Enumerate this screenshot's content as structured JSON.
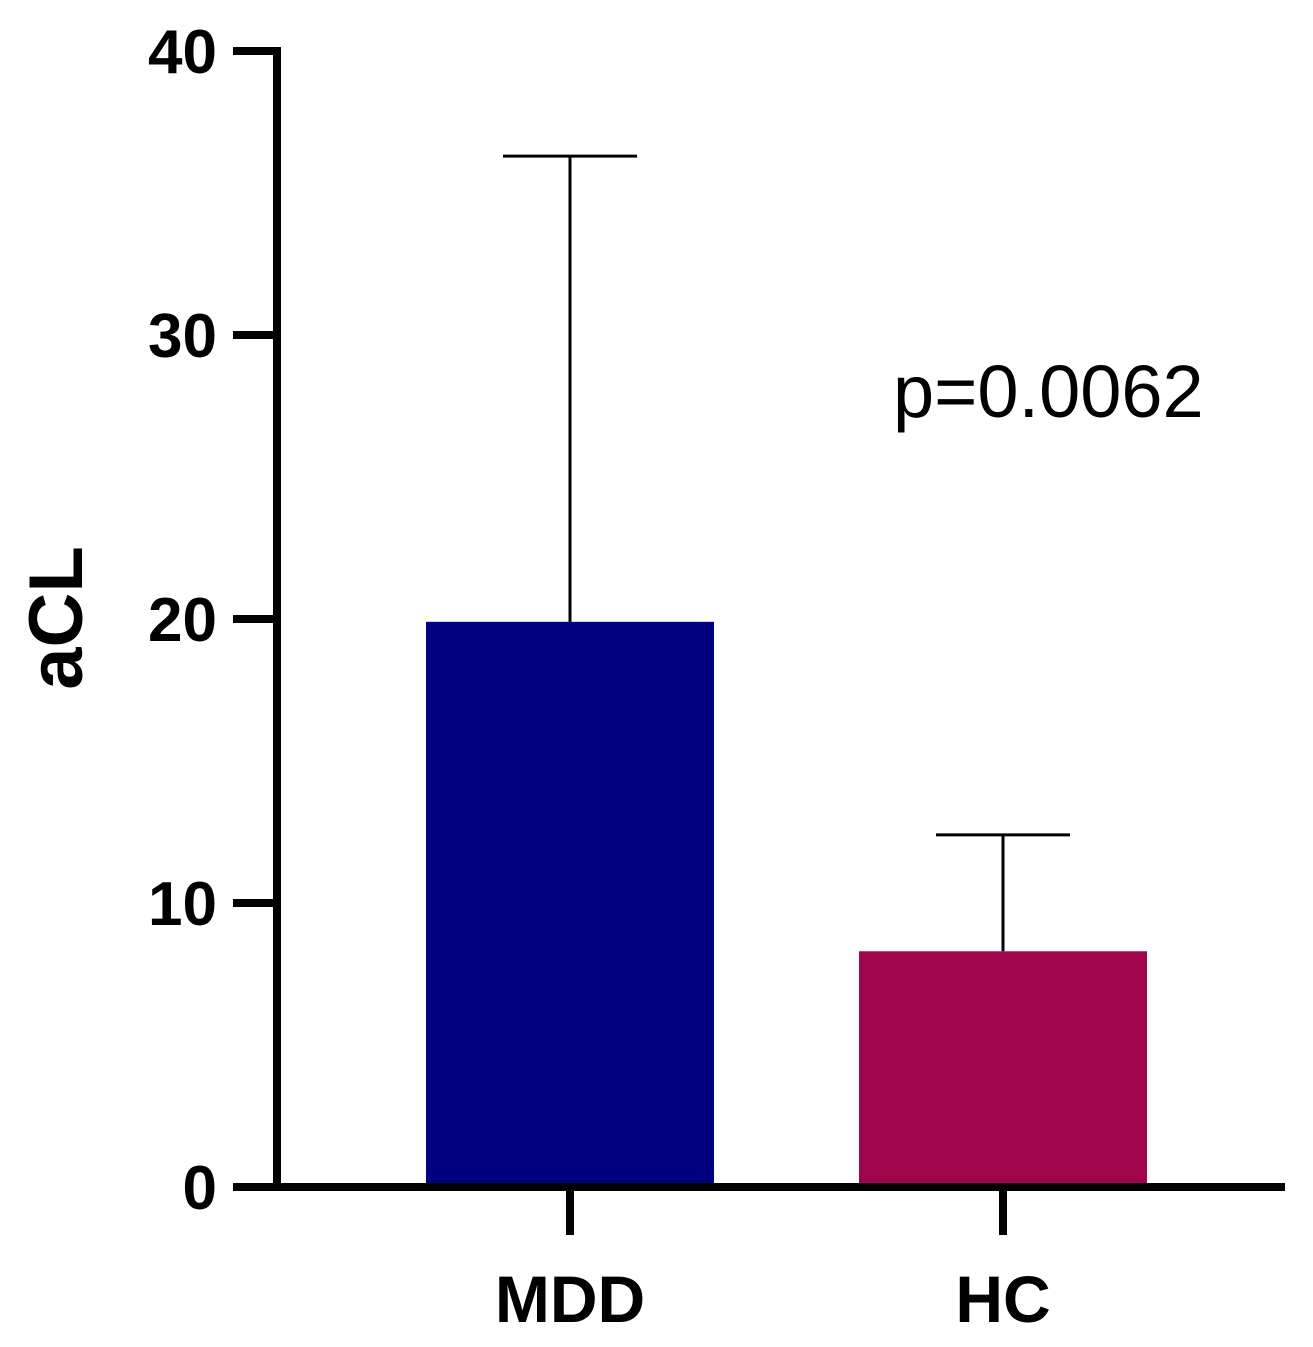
{
  "chart_data": {
    "type": "bar",
    "categories": [
      "MDD",
      "HC"
    ],
    "values": [
      19.9,
      8.3
    ],
    "error_upper": [
      36.3,
      12.4
    ],
    "colors": [
      "#000080",
      "#a0054b"
    ],
    "xlabel": "",
    "ylabel": "aCL",
    "ylim": [
      0,
      40
    ],
    "yticks": [
      0,
      10,
      20,
      30,
      40
    ],
    "yticklabels": [
      "0",
      "10",
      "20",
      "30",
      "40"
    ],
    "annotation": "p=0.0062",
    "grid": false
  }
}
